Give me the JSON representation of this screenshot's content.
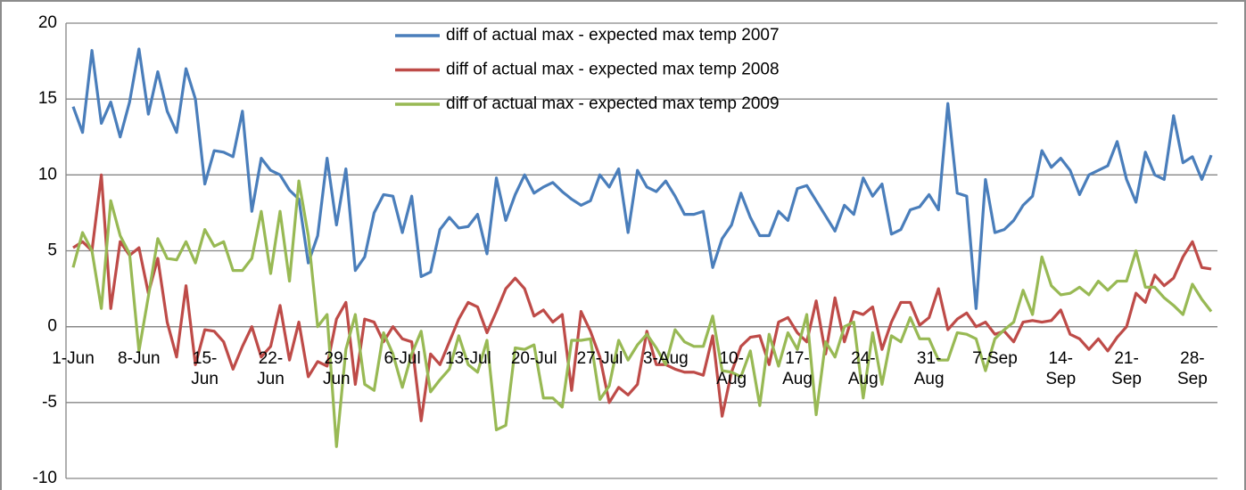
{
  "chart_data": {
    "type": "line",
    "categories": [
      "1-Jun",
      null,
      null,
      null,
      null,
      null,
      null,
      "8-Jun",
      null,
      null,
      null,
      null,
      null,
      null,
      "15-Jun",
      null,
      null,
      null,
      null,
      null,
      null,
      "22-Jun",
      null,
      null,
      null,
      null,
      null,
      null,
      "29-Jun",
      null,
      null,
      null,
      null,
      null,
      null,
      "6-Jul",
      null,
      null,
      null,
      null,
      null,
      null,
      "13-Jul",
      null,
      null,
      null,
      null,
      null,
      null,
      "20-Jul",
      null,
      null,
      null,
      null,
      null,
      null,
      "27-Jul",
      null,
      null,
      null,
      null,
      null,
      null,
      "3-Aug",
      null,
      null,
      null,
      null,
      null,
      null,
      "10-Aug",
      null,
      null,
      null,
      null,
      null,
      null,
      "17-Aug",
      null,
      null,
      null,
      null,
      null,
      null,
      "24-Aug",
      null,
      null,
      null,
      null,
      null,
      null,
      "31-Aug",
      null,
      null,
      null,
      null,
      null,
      null,
      "7-Sep",
      null,
      null,
      null,
      null,
      null,
      null,
      "14-Sep",
      null,
      null,
      null,
      null,
      null,
      null,
      "21-Sep",
      null,
      null,
      null,
      null,
      null,
      null,
      "28-Sep",
      null,
      null
    ],
    "series": [
      {
        "name": "diff of actual max - expected max temp 2007",
        "color": "#4a7ebb",
        "values": [
          14.5,
          12.8,
          18.2,
          13.4,
          14.8,
          12.5,
          14.8,
          18.3,
          14.0,
          16.8,
          14.2,
          12.8,
          17.0,
          15.0,
          9.4,
          11.6,
          11.5,
          11.2,
          14.2,
          7.6,
          11.1,
          10.3,
          10.0,
          9.0,
          8.4,
          4.2,
          6.0,
          11.1,
          6.7,
          10.4,
          3.7,
          4.6,
          7.5,
          8.7,
          8.6,
          6.2,
          8.6,
          3.3,
          3.6,
          6.4,
          7.2,
          6.5,
          6.6,
          7.4,
          4.8,
          9.8,
          7.0,
          8.7,
          10.0,
          8.8,
          9.2,
          9.5,
          8.9,
          8.4,
          8.0,
          8.3,
          10.0,
          9.2,
          10.4,
          6.2,
          10.3,
          9.2,
          8.9,
          9.6,
          8.6,
          7.4,
          7.4,
          7.6,
          3.9,
          5.8,
          6.7,
          8.8,
          7.2,
          6.0,
          6.0,
          7.6,
          7.0,
          9.1,
          9.3,
          8.3,
          7.3,
          6.3,
          8.0,
          7.4,
          9.8,
          8.6,
          9.4,
          6.1,
          6.4,
          7.7,
          7.9,
          8.7,
          7.7,
          14.7,
          8.8,
          8.6,
          1.2,
          9.7,
          6.2,
          6.4,
          7.0,
          8.0,
          8.6,
          11.6,
          10.5,
          11.1,
          10.3,
          8.7,
          10.0,
          10.3,
          10.6,
          12.2,
          9.7,
          8.2,
          11.5,
          10.0,
          9.7,
          13.9,
          10.8,
          11.2,
          9.7,
          11.3
        ]
      },
      {
        "name": "diff of actual max - expected max temp 2008",
        "color": "#be4b48",
        "values": [
          5.2,
          5.6,
          5.0,
          10.0,
          1.2,
          5.6,
          4.7,
          5.2,
          2.2,
          4.5,
          0.3,
          -2.0,
          2.7,
          -2.5,
          -0.2,
          -0.3,
          -1.0,
          -2.8,
          -1.3,
          0.0,
          -2.0,
          -1.3,
          1.4,
          -2.2,
          0.3,
          -3.3,
          -2.3,
          -2.6,
          0.5,
          1.6,
          -3.8,
          0.5,
          0.3,
          -1.0,
          0.0,
          -0.8,
          -1.0,
          -6.2,
          -1.8,
          -2.5,
          -1.0,
          0.5,
          1.6,
          1.3,
          -0.4,
          1.0,
          2.5,
          3.2,
          2.5,
          0.7,
          1.1,
          0.3,
          0.8,
          -4.2,
          1.0,
          -0.3,
          -2.0,
          -5.0,
          -4.0,
          -4.5,
          -3.8,
          -0.3,
          -2.5,
          -2.5,
          -2.8,
          -3.0,
          -3.0,
          -3.2,
          -0.6,
          -5.9,
          -3.0,
          -1.3,
          -0.7,
          -0.6,
          -2.5,
          0.3,
          0.6,
          -0.4,
          -1.0,
          1.7,
          -1.8,
          1.9,
          -1.0,
          1.0,
          0.8,
          1.3,
          -1.5,
          0.3,
          1.6,
          1.6,
          0.1,
          0.6,
          2.5,
          -0.2,
          0.5,
          0.9,
          0.0,
          0.3,
          -0.5,
          -0.3,
          -1.0,
          0.3,
          0.4,
          0.3,
          0.4,
          1.1,
          -0.5,
          -0.8,
          -1.5,
          -0.8,
          -1.6,
          -0.7,
          0.0,
          2.2,
          1.6,
          3.4,
          2.7,
          3.2,
          4.6,
          5.6,
          3.9,
          3.8
        ]
      },
      {
        "name": "diff of actual max - expected max temp 2009",
        "color": "#98b954",
        "values": [
          3.9,
          6.2,
          5.0,
          1.2,
          8.3,
          6.0,
          4.8,
          -1.6,
          2.0,
          5.8,
          4.5,
          4.4,
          5.6,
          4.2,
          6.4,
          5.3,
          5.6,
          3.7,
          3.7,
          4.5,
          7.6,
          3.5,
          7.6,
          3.0,
          9.6,
          6.0,
          0.0,
          0.8,
          -7.9,
          -1.5,
          0.8,
          -3.8,
          -4.2,
          -0.4,
          -1.8,
          -4.0,
          -1.8,
          -0.3,
          -4.3,
          -3.5,
          -2.8,
          -0.6,
          -2.5,
          -3.0,
          -0.9,
          -6.8,
          -6.5,
          -1.4,
          -1.5,
          -1.2,
          -4.7,
          -4.7,
          -5.3,
          -0.9,
          -0.9,
          -0.8,
          -4.8,
          -3.9,
          -0.9,
          -2.2,
          -1.2,
          -0.5,
          -1.4,
          -2.5,
          -0.2,
          -1.0,
          -1.3,
          -1.3,
          0.7,
          -2.9,
          -3.0,
          -3.3,
          -1.6,
          -5.2,
          -0.5,
          -2.6,
          -0.4,
          -1.5,
          0.8,
          -5.8,
          -1.0,
          -2.0,
          0.0,
          0.3,
          -4.7,
          -0.4,
          -3.8,
          -0.6,
          -1.0,
          0.6,
          -0.8,
          -0.8,
          -2.2,
          -2.2,
          -0.4,
          -0.5,
          -0.8,
          -2.9,
          -0.8,
          -0.2,
          0.3,
          2.4,
          0.8,
          4.6,
          2.7,
          2.1,
          2.2,
          2.6,
          2.1,
          3.0,
          2.4,
          3.0,
          3.0,
          5.0,
          2.6,
          2.6,
          1.9,
          1.4,
          0.8,
          2.8,
          1.8,
          1.0
        ]
      }
    ],
    "ylim": [
      -10,
      20
    ],
    "yticks": [
      -10,
      -5,
      0,
      5,
      10,
      15,
      20
    ],
    "grid": true
  }
}
